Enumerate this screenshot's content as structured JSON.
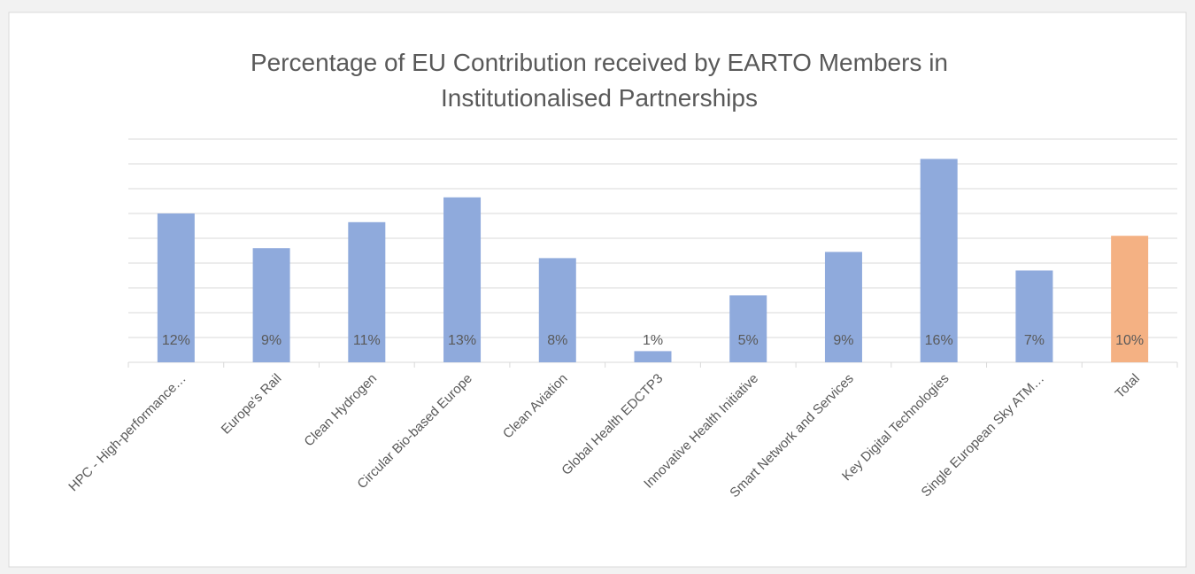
{
  "chart_data": {
    "type": "bar",
    "title": [
      "Percentage of EU Contribution received by EARTO Members in",
      "Institutionalised Partnerships"
    ],
    "categories": [
      "HPC - High-performance…",
      "Europe's Rail",
      "Clean Hydrogen",
      "Circular Bio-based Europe",
      "Clean Aviation",
      "Global Health EDCTP3",
      "Innovative Health Initiative",
      "Smart Network and Services",
      "Key Digital Technologies",
      "Single European Sky ATM…",
      "Total"
    ],
    "values": [
      12,
      9.2,
      11.3,
      13.3,
      8.4,
      0.9,
      5.4,
      8.9,
      16.4,
      7.4,
      10.2
    ],
    "value_labels": [
      "12%",
      "9%",
      "11%",
      "13%",
      "8%",
      "1%",
      "5%",
      "9%",
      "16%",
      "7%",
      "10%"
    ],
    "colors": [
      "#8faadc",
      "#8faadc",
      "#8faadc",
      "#8faadc",
      "#8faadc",
      "#8faadc",
      "#8faadc",
      "#8faadc",
      "#8faadc",
      "#8faadc",
      "#f4b183"
    ],
    "ylim": [
      0,
      18
    ],
    "yticks": [
      0,
      2,
      4,
      6,
      8,
      10,
      12,
      14,
      16,
      18
    ],
    "grid": true
  }
}
